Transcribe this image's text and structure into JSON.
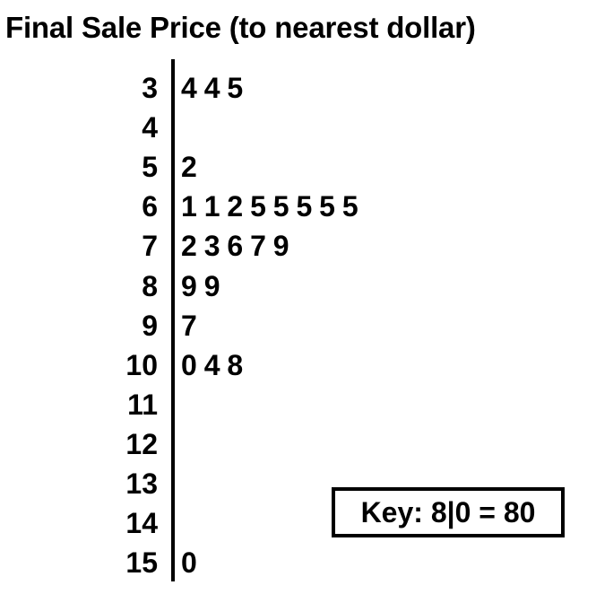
{
  "chart_data": {
    "type": "stem-and-leaf",
    "title": "Final Sale Price (to nearest dollar)",
    "rows": [
      {
        "stem": "3",
        "leaves": [
          "4",
          "4",
          "5"
        ]
      },
      {
        "stem": "4",
        "leaves": []
      },
      {
        "stem": "5",
        "leaves": [
          "2"
        ]
      },
      {
        "stem": "6",
        "leaves": [
          "1",
          "1",
          "2",
          "5",
          "5",
          "5",
          "5",
          "5"
        ]
      },
      {
        "stem": "7",
        "leaves": [
          "2",
          "3",
          "6",
          "7",
          "9"
        ]
      },
      {
        "stem": "8",
        "leaves": [
          "9",
          "9"
        ]
      },
      {
        "stem": "9",
        "leaves": [
          "7"
        ]
      },
      {
        "stem": "10",
        "leaves": [
          "0",
          "4",
          "8"
        ]
      },
      {
        "stem": "11",
        "leaves": []
      },
      {
        "stem": "12",
        "leaves": []
      },
      {
        "stem": "13",
        "leaves": []
      },
      {
        "stem": "14",
        "leaves": []
      },
      {
        "stem": "15",
        "leaves": [
          "0"
        ]
      }
    ],
    "values": [
      34,
      34,
      35,
      52,
      61,
      61,
      62,
      65,
      65,
      65,
      65,
      65,
      72,
      73,
      76,
      77,
      79,
      89,
      89,
      97,
      100,
      104,
      108,
      150
    ],
    "key": "Key: 8|0 = 80"
  }
}
